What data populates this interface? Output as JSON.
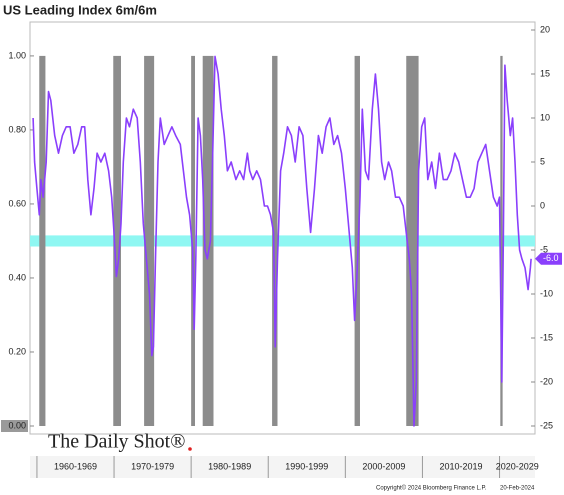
{
  "chart_data": {
    "type": "line",
    "title": "US Leading Index 6m/6m",
    "logo": "The Daily Shot®",
    "footer": [
      "Copyright© 2024 Bloomberg Finance L.P.",
      "20-Feb-2024"
    ],
    "xlim": [
      1959.1,
      2024.6
    ],
    "xticks": [
      1960,
      1970,
      1980,
      1990,
      2000,
      2010,
      2020
    ],
    "decade_labels": [
      "1960-1969",
      "1970-1979",
      "1980-1989",
      "1990-1999",
      "2000-2009",
      "2010-2019",
      "2020-2029"
    ],
    "ylim": [
      0,
      1.07
    ],
    "yticks": [
      {
        "value": 0,
        "label": "0.00"
      },
      {
        "value": 0.2,
        "label": "0.20"
      },
      {
        "value": 0.4,
        "label": "0.40"
      },
      {
        "value": 0.6,
        "label": "0.60"
      },
      {
        "value": 0.8,
        "label": "0.80"
      },
      {
        "value": 1,
        "label": "1.00"
      }
    ],
    "y2lim": [
      -25,
      20
    ],
    "y2ticks": [
      20,
      15,
      10,
      5,
      0,
      -5,
      -10,
      -15,
      -20,
      -25
    ],
    "band": {
      "color": "#8ff7f2",
      "range": [
        0.485,
        0.515
      ]
    },
    "recessions": {
      "color": "#8c8c8c",
      "value": 1,
      "start": [
        1960.3,
        1969.9,
        1973.9,
        1980.0,
        1981.5,
        1990.5,
        2001.2,
        2007.9,
        2020.1
      ],
      "end": [
        1961.1,
        1970.9,
        1975.2,
        1980.5,
        1982.9,
        1991.2,
        2001.9,
        2009.5,
        2020.4
      ]
    },
    "last_value": -6.0,
    "last_value_label": "-6.0",
    "series": [
      {
        "axis": "y2",
        "color": "#8a3ffc",
        "x": [
          1959.5,
          1959.7,
          1960.0,
          1960.3,
          1960.5,
          1960.8,
          1961.2,
          1961.5,
          1961.8,
          1962.3,
          1962.8,
          1963.3,
          1963.8,
          1964.3,
          1964.8,
          1965.3,
          1965.8,
          1966.2,
          1966.6,
          1967.0,
          1967.4,
          1967.8,
          1968.3,
          1968.8,
          1969.3,
          1969.7,
          1970.0,
          1970.3,
          1970.6,
          1970.9,
          1971.2,
          1971.6,
          1972.0,
          1972.5,
          1973.0,
          1973.4,
          1973.8,
          1974.2,
          1974.6,
          1974.9,
          1975.1,
          1975.4,
          1975.7,
          1976.0,
          1976.5,
          1977.0,
          1977.5,
          1978.0,
          1978.6,
          1979.0,
          1979.4,
          1979.8,
          1980.2,
          1980.4,
          1980.6,
          1980.9,
          1981.2,
          1981.5,
          1981.8,
          1982.1,
          1982.5,
          1982.8,
          1983.1,
          1983.5,
          1983.9,
          1984.3,
          1984.7,
          1985.2,
          1985.8,
          1986.3,
          1986.8,
          1987.3,
          1987.6,
          1988.0,
          1988.5,
          1989.0,
          1989.5,
          1989.9,
          1990.3,
          1990.7,
          1990.9,
          1991.2,
          1991.6,
          1992.0,
          1992.5,
          1993.0,
          1993.5,
          1994.0,
          1994.5,
          1995.0,
          1995.5,
          1996.0,
          1996.5,
          1997.0,
          1997.5,
          1998.0,
          1998.5,
          1999.0,
          1999.5,
          2000.0,
          2000.5,
          2000.9,
          2001.2,
          2001.5,
          2001.9,
          2002.2,
          2002.6,
          2003.0,
          2003.5,
          2003.9,
          2004.3,
          2004.7,
          2005.1,
          2005.6,
          2006.0,
          2006.5,
          2007.0,
          2007.5,
          2007.9,
          2008.3,
          2008.6,
          2008.9,
          2009.2,
          2009.5,
          2009.9,
          2010.3,
          2010.7,
          2011.2,
          2011.7,
          2012.2,
          2012.7,
          2013.2,
          2013.7,
          2014.2,
          2014.7,
          2015.2,
          2015.7,
          2016.2,
          2016.7,
          2017.2,
          2017.7,
          2018.2,
          2018.7,
          2019.2,
          2019.7,
          2020.0,
          2020.3,
          2020.5,
          2020.7,
          2021.0,
          2021.4,
          2021.7,
          2022.0,
          2022.3,
          2022.6,
          2022.9,
          2023.3,
          2023.7,
          2024.0,
          2024.1
        ],
        "values": [
          10,
          5,
          2,
          -1,
          3,
          1,
          5,
          13,
          12,
          8,
          6,
          8,
          9,
          9,
          6,
          7,
          9,
          9,
          3,
          -1,
          2,
          6,
          5,
          6,
          4,
          1,
          -3,
          -8,
          -6,
          -2,
          5,
          10,
          9,
          11,
          10,
          5,
          -2,
          -6,
          -10,
          -17,
          -16,
          -5,
          5,
          10,
          7,
          8,
          9,
          8,
          7,
          4,
          1,
          -1,
          -5,
          -14,
          -6,
          10,
          8,
          3,
          -5,
          -6,
          -4,
          6,
          17,
          15,
          11,
          8,
          4,
          5,
          3,
          4,
          3,
          6,
          4,
          3,
          4,
          3,
          0,
          0,
          -1,
          -3,
          -16,
          -6,
          4,
          6,
          9,
          8,
          5,
          9,
          8,
          2,
          -3,
          2,
          8,
          6,
          9,
          10,
          7,
          8,
          6,
          2,
          -3,
          -7,
          -13,
          -8,
          1,
          11,
          4,
          3,
          11,
          15,
          11,
          5,
          3,
          5,
          4,
          1,
          1,
          0,
          -3,
          -6,
          -10,
          -25,
          -20,
          4,
          9,
          10,
          3,
          5,
          2,
          6,
          3,
          3,
          4,
          6,
          5,
          3,
          1,
          1,
          2,
          5,
          6,
          7,
          4,
          1,
          0,
          1,
          -20,
          -3,
          16,
          12,
          8,
          10,
          5,
          -1,
          -5,
          -6,
          -7,
          -9.5,
          -7,
          -6.0
        ]
      }
    ]
  }
}
